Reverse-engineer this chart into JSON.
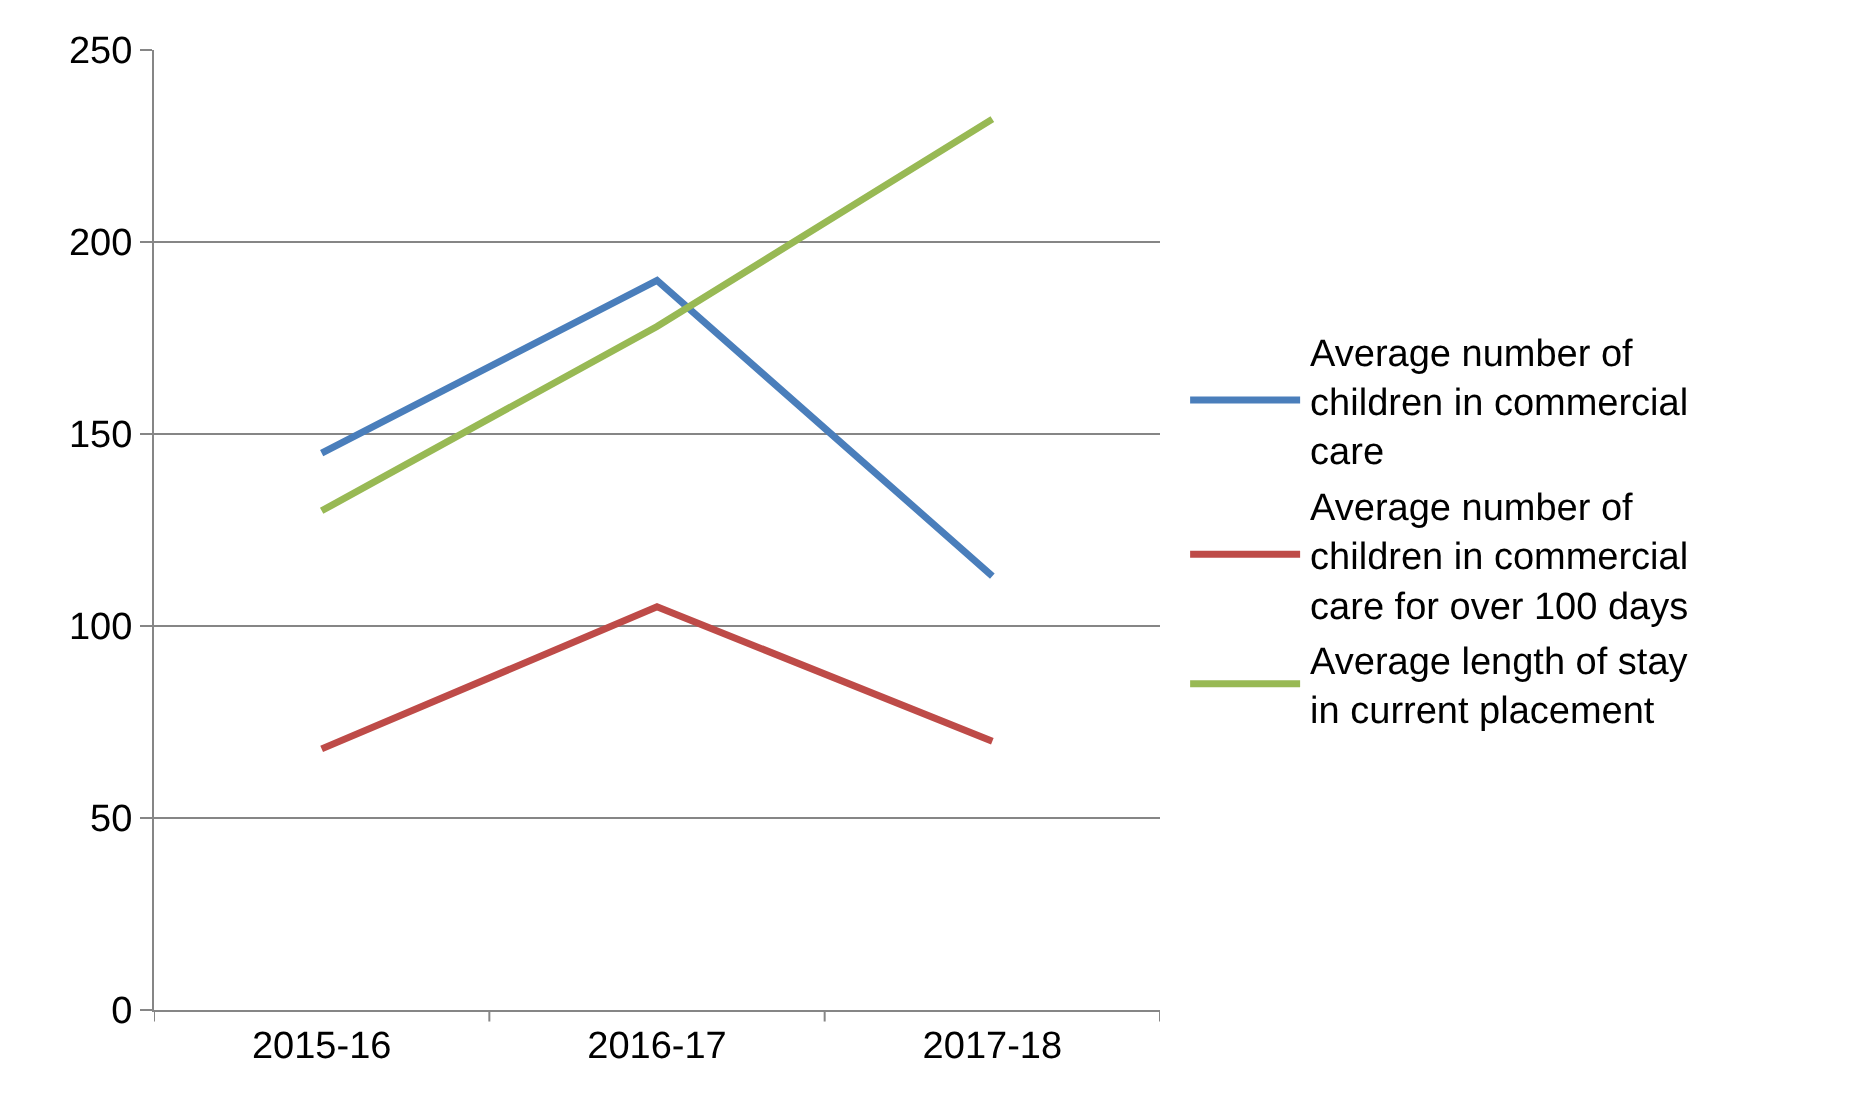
{
  "chart_data": {
    "type": "line",
    "categories": [
      "2015-16",
      "2016-17",
      "2017-18"
    ],
    "series": [
      {
        "name": "Average number of children in commercial care",
        "color": "#4a7ebb",
        "values": [
          145,
          190,
          113
        ]
      },
      {
        "name": "Average number of children in commercial care for over 100 days",
        "color": "#be4b48",
        "values": [
          68,
          105,
          70
        ]
      },
      {
        "name": "Average length of stay in current placement",
        "color": "#98b954",
        "values": [
          130,
          178,
          232
        ]
      }
    ],
    "ylim": [
      0,
      250
    ],
    "yticks": [
      0,
      50,
      100,
      150,
      200,
      250
    ],
    "grid": "y",
    "legend": "right",
    "marker": "none",
    "line_style": "solid"
  }
}
